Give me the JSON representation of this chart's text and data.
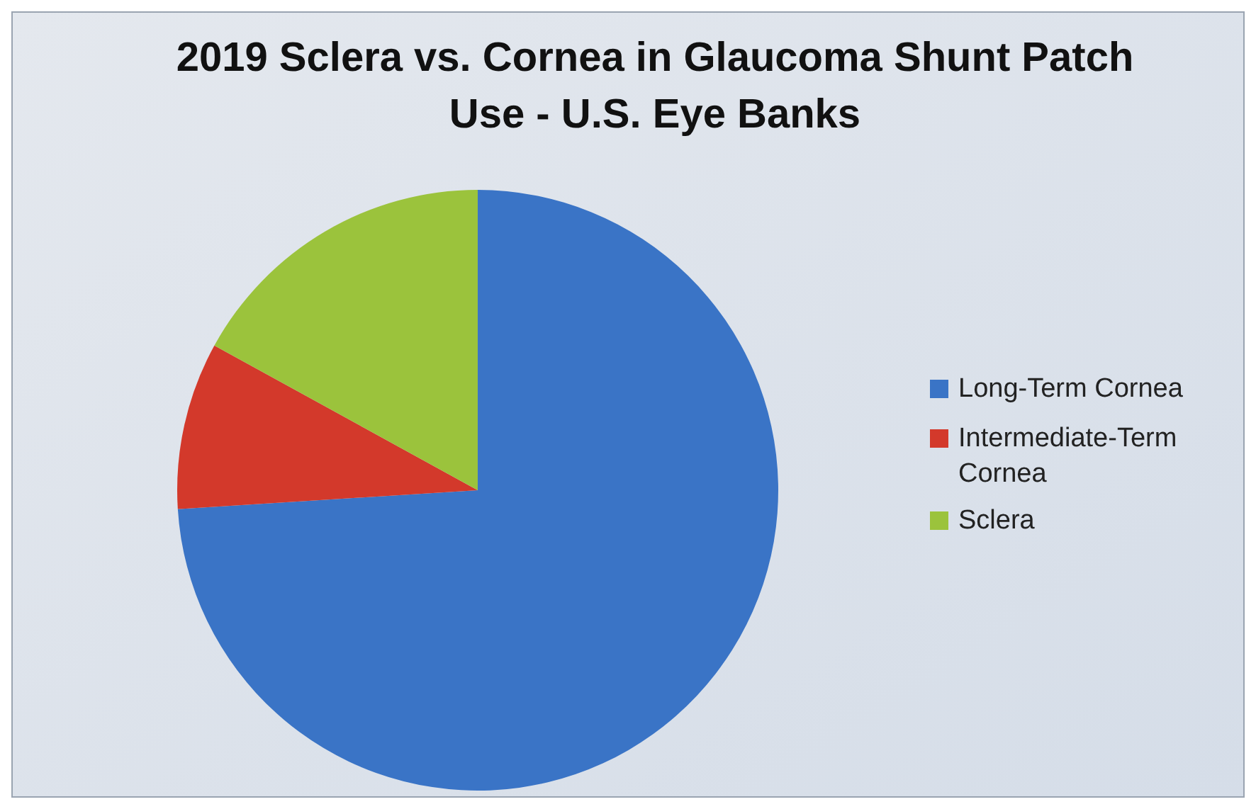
{
  "chart_data": {
    "type": "pie",
    "title": "2019 Sclera vs. Cornea in Glaucoma Shunt Patch Use - U.S. Eye Banks",
    "categories": [
      "Long-Term Cornea",
      "Intermediate-Term Cornea",
      "Sclera"
    ],
    "values": [
      74,
      9,
      17
    ],
    "colors": [
      "#3a74c6",
      "#d3392b",
      "#9bc33c"
    ],
    "legend": "right"
  }
}
